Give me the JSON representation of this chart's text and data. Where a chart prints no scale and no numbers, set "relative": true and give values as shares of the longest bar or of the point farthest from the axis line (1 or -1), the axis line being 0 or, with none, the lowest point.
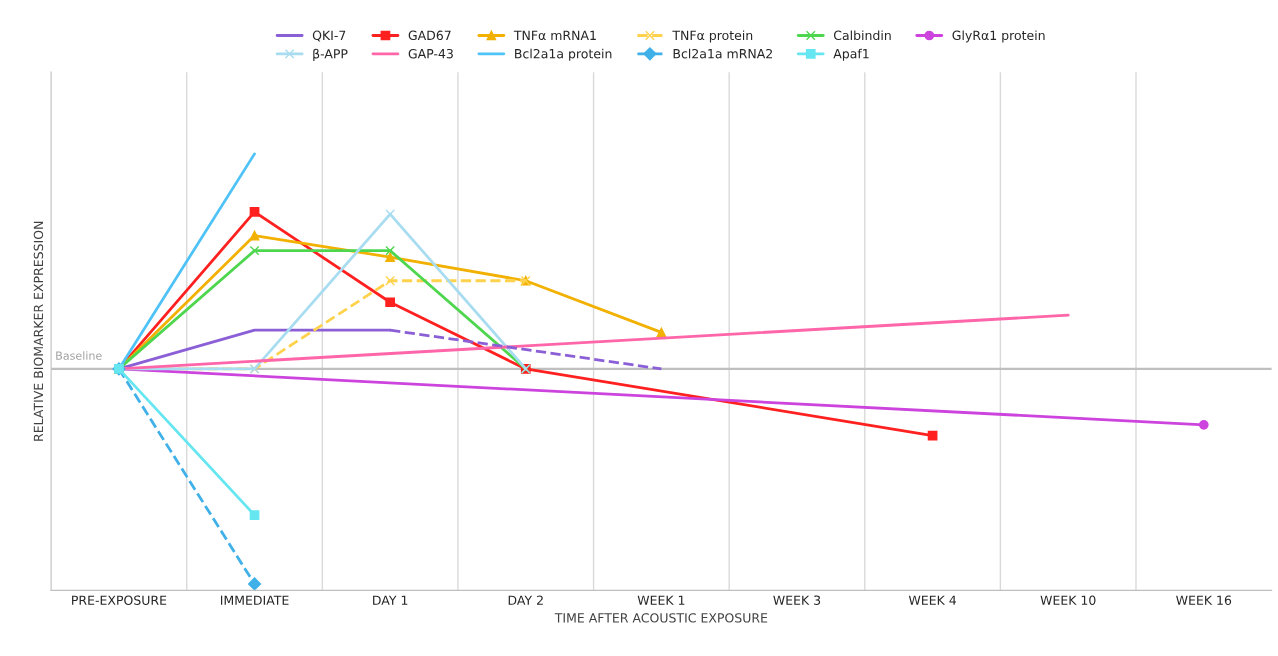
{
  "chart_data": {
    "type": "line",
    "relative": true,
    "xlabel": "TIME AFTER ACOUSTIC EXPOSURE",
    "ylabel": "RELATIVE BIOMARKER EXPRESSION",
    "annotations": [
      "Baseline"
    ],
    "grid": "x",
    "legend": "top",
    "categories": [
      "PRE-EXPOSURE",
      "IMMEDIATE",
      "DAY 1",
      "DAY 2",
      "WEEK 1",
      "WEEK 3",
      "WEEK 4",
      "WEEK 10",
      "WEEK 16"
    ],
    "series": [
      {
        "name": "QKI-7",
        "color": "#8b5fd6",
        "marker": "none",
        "values": [
          0,
          0.18,
          0.18,
          null,
          null,
          null,
          null,
          null,
          null
        ]
      },
      {
        "name": "GAD67",
        "color": "#ff2020",
        "marker": "square",
        "values": [
          0,
          0.73,
          0.31,
          0,
          null,
          null,
          -0.31,
          null,
          null
        ]
      },
      {
        "name": "TNFα mRNA1",
        "color": "#f2b000",
        "marker": "triangle",
        "values": [
          0,
          0.62,
          0.52,
          0.41,
          0.17,
          null,
          null,
          null,
          null
        ]
      },
      {
        "name": "TNFα protein",
        "color": "#ffd24d",
        "marker": "cross",
        "line_style": "dashed",
        "values": [
          0,
          0,
          0.41,
          0.41,
          null,
          null,
          null,
          null,
          null
        ]
      },
      {
        "name": "Calbindin",
        "color": "#4fd64f",
        "marker": "cross",
        "values": [
          0,
          0.55,
          0.55,
          0,
          null,
          null,
          null,
          null,
          null
        ]
      },
      {
        "name": "GlyRα1 protein",
        "color": "#cc44dd",
        "marker": "circle",
        "values": [
          0,
          null,
          null,
          null,
          null,
          null,
          null,
          null,
          -0.26
        ]
      },
      {
        "name": "β-APP",
        "color": "#a8dcf0",
        "marker": "cross",
        "values": [
          0,
          0,
          0.72,
          0,
          null,
          null,
          null,
          null,
          null
        ]
      },
      {
        "name": "GAP-43",
        "color": "#ff66aa",
        "marker": "none",
        "values": [
          0,
          null,
          null,
          null,
          null,
          null,
          null,
          0.25,
          null
        ]
      },
      {
        "name": "Bcl2a1a protein",
        "color": "#4fc3f7",
        "marker": "none",
        "values": [
          0,
          1,
          null,
          null,
          null,
          null,
          null,
          null,
          null
        ]
      },
      {
        "name": "Bcl2a1a mRNA2",
        "color": "#3fb0e8",
        "marker": "diamond",
        "line_style": "dashed",
        "values": [
          0,
          -1,
          null,
          null,
          null,
          null,
          null,
          null,
          null
        ]
      },
      {
        "name": "Apaf1",
        "color": "#66e6f0",
        "marker": "square",
        "values": [
          0,
          -0.68,
          null,
          null,
          null,
          null,
          null,
          null,
          null
        ]
      },
      {
        "color": "#8b5fd6",
        "marker": "none",
        "line_style": "dashed",
        "values": [
          null,
          null,
          0.18,
          null,
          0,
          null,
          null,
          null,
          null
        ]
      }
    ]
  }
}
